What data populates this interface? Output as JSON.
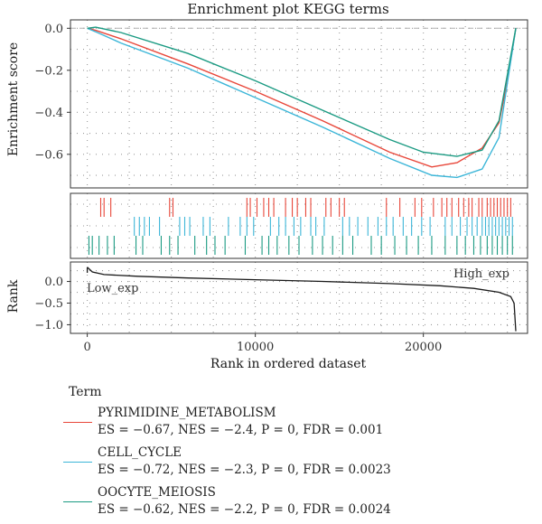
{
  "chart_data": {
    "type": "line",
    "title": "Enrichment plot KEGG terms",
    "xlabel": "Rank in ordered dataset",
    "x_range": [
      -1000,
      26200
    ],
    "x_ticks": [
      0,
      10000,
      20000
    ],
    "x_tick_labels": [
      "0",
      "10000",
      "20000"
    ],
    "top_panel": {
      "ylabel": "Enrichment score",
      "ylim": [
        -0.76,
        0.04
      ],
      "y_ticks": [
        0.0,
        -0.2,
        -0.4,
        -0.6
      ],
      "y_tick_labels": [
        "0.0",
        "−0.2",
        "−0.4",
        "−0.6"
      ],
      "baseline": 0,
      "series": [
        {
          "name": "PYRIMIDINE_METABOLISM",
          "color": "#e8473a",
          "x": [
            0,
            500,
            2000,
            6000,
            10000,
            14000,
            18000,
            20500,
            22000,
            23500,
            24500,
            25000,
            25500
          ],
          "y": [
            0.0,
            -0.01,
            -0.05,
            -0.17,
            -0.3,
            -0.44,
            -0.59,
            -0.66,
            -0.64,
            -0.57,
            -0.45,
            -0.25,
            0.0
          ]
        },
        {
          "name": "CELL_CYCLE",
          "color": "#3cb6d8",
          "x": [
            0,
            600,
            2000,
            6000,
            10000,
            14000,
            18000,
            20500,
            22000,
            23500,
            24500,
            25000,
            25500
          ],
          "y": [
            0.0,
            -0.02,
            -0.07,
            -0.19,
            -0.33,
            -0.47,
            -0.62,
            -0.7,
            -0.71,
            -0.67,
            -0.52,
            -0.26,
            0.0
          ]
        },
        {
          "name": "OOCYTE_MEIOSIS",
          "color": "#1a9a82",
          "x": [
            0,
            500,
            2000,
            6000,
            10000,
            14000,
            18000,
            20000,
            22000,
            23500,
            24500,
            25000,
            25500
          ],
          "y": [
            0.0,
            0.005,
            -0.02,
            -0.12,
            -0.25,
            -0.39,
            -0.53,
            -0.59,
            -0.61,
            -0.58,
            -0.44,
            -0.22,
            0.0
          ]
        }
      ]
    },
    "hits_panel": {
      "rows": [
        "PYRIMIDINE_METABOLISM",
        "CELL_CYCLE",
        "OOCYTE_MEIOSIS"
      ],
      "colors": [
        "#e8473a",
        "#3cb6d8",
        "#1a9a82"
      ],
      "PYRIMIDINE_METABOLISM": [
        800,
        1000,
        1400,
        4900,
        5100,
        9500,
        9700,
        10100,
        10500,
        10800,
        11100,
        11800,
        12200,
        12500,
        13000,
        13300,
        14200,
        14500,
        15000,
        15300,
        17800,
        18600,
        19500,
        19900,
        20600,
        21100,
        21400,
        21700,
        22100,
        22400,
        22700,
        22900,
        23300,
        23500,
        23800,
        24000,
        24200,
        24400,
        24600,
        24800,
        25000,
        25200
      ],
      "CELL_CYCLE": [
        2800,
        3100,
        3400,
        3700,
        4300,
        5500,
        5800,
        6100,
        6900,
        7300,
        8400,
        9100,
        9500,
        9900,
        10900,
        11400,
        11800,
        12300,
        12700,
        13300,
        13600,
        14100,
        15200,
        15600,
        16100,
        16700,
        17300,
        17800,
        18200,
        18800,
        19300,
        19900,
        20400,
        21300,
        21700,
        22200,
        22600,
        22900,
        23200,
        23500,
        23700,
        23900,
        24100,
        24300,
        24500,
        24700,
        24900,
        25100,
        25300
      ],
      "OOCYTE_MEIOSIS": [
        100,
        300,
        700,
        1200,
        1600,
        2900,
        3300,
        4400,
        4900,
        5400,
        6400,
        7100,
        7600,
        8200,
        9400,
        10400,
        10800,
        11300,
        12000,
        12600,
        13400,
        14000,
        14600,
        15200,
        15800,
        16900,
        17500,
        18300,
        19000,
        19700,
        20500,
        21300,
        22000,
        22500,
        23000,
        23400,
        23800,
        24100,
        24400,
        24700,
        25000,
        25300
      ]
    },
    "rank_panel": {
      "ylabel": "Rank",
      "ylim": [
        -1.2,
        0.45
      ],
      "y_ticks": [
        0.0,
        -0.5,
        -1.0
      ],
      "y_tick_labels": [
        "0.0",
        "−0.5",
        "−1.0"
      ],
      "x": [
        0,
        300,
        1000,
        3000,
        6000,
        10000,
        14000,
        18000,
        21000,
        23000,
        24500,
        25200,
        25400,
        25500
      ],
      "y": [
        0.33,
        0.22,
        0.16,
        0.12,
        0.08,
        0.04,
        0.0,
        -0.05,
        -0.1,
        -0.16,
        -0.25,
        -0.35,
        -0.5,
        -1.15
      ],
      "low_label": "Low_exp",
      "high_label": "High_exp"
    },
    "legend": {
      "title": "Term",
      "entries": [
        {
          "name": "PYRIMIDINE_METABOLISM",
          "stats": "ES = −0.67, NES = −2.4, P = 0, FDR = 0.001",
          "color": "#e8473a"
        },
        {
          "name": "CELL_CYCLE",
          "stats": "ES = −0.72, NES = −2.3, P = 0, FDR = 0.0023",
          "color": "#3cb6d8"
        },
        {
          "name": "OOCYTE_MEIOSIS",
          "stats": "ES = −0.62, NES = −2.2, P = 0, FDR = 0.0024",
          "color": "#1a9a82"
        }
      ],
      "placement": "bottom"
    },
    "grid": true
  }
}
